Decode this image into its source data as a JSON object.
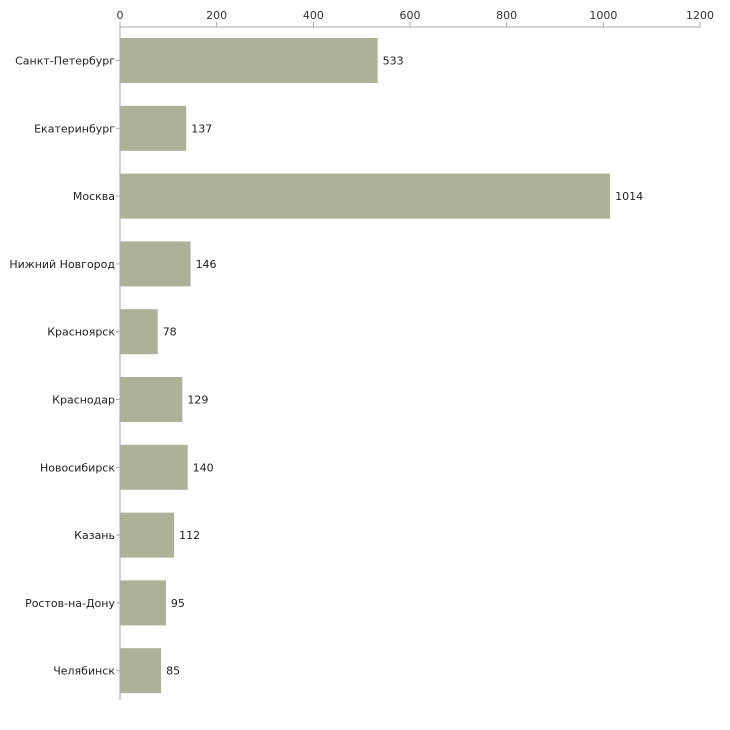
{
  "chart_data": {
    "type": "bar",
    "orientation": "horizontal",
    "title": "",
    "xlabel": "",
    "ylabel": "",
    "categories": [
      "Санкт-Петербург",
      "Екатеринбург",
      "Москва",
      "Нижний Новгород",
      "Красноярск",
      "Краснодар",
      "Новосибирск",
      "Казань",
      "Ростов-на-Дону",
      "Челябинск"
    ],
    "values": [
      533,
      137,
      1014,
      146,
      78,
      129,
      140,
      112,
      95,
      85
    ],
    "xlim": [
      0,
      1200
    ],
    "xticks": [
      0,
      200,
      400,
      600,
      800,
      1000,
      1200
    ],
    "axis_position": "top",
    "grid": false,
    "colors": {
      "bar": "#acb197",
      "axis": "#aaaaaa"
    }
  }
}
